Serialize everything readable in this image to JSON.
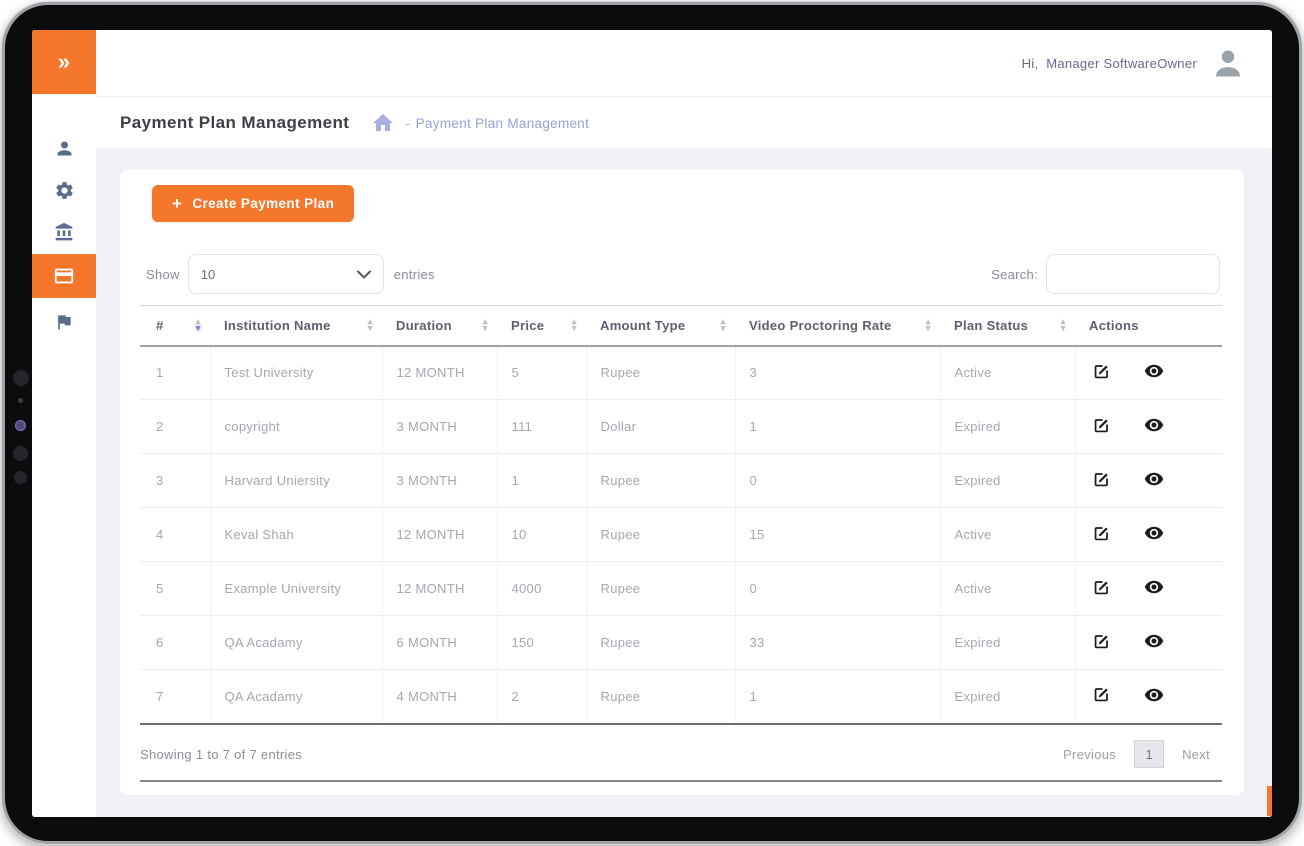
{
  "topbar": {
    "greeting_prefix": "Hi,",
    "username": "Manager SoftwareOwner"
  },
  "sidebar": {
    "toggle_glyph": "»",
    "items": [
      {
        "id": "users",
        "icon": "user-icon"
      },
      {
        "id": "settings",
        "icon": "gear-icon"
      },
      {
        "id": "institutions",
        "icon": "bank-icon"
      },
      {
        "id": "payment-plans",
        "icon": "credit-card-icon",
        "active": true
      },
      {
        "id": "reports",
        "icon": "flag-icon"
      }
    ]
  },
  "page": {
    "title": "Payment Plan Management",
    "breadcrumb": {
      "home_icon": "home-icon",
      "separator": "-",
      "current": "Payment Plan Management"
    }
  },
  "icons": {
    "plus": "+",
    "sort_asc": "▲",
    "sort_desc": "▼"
  },
  "main": {
    "create_button": {
      "label": "Create Payment Plan"
    },
    "length_control": {
      "prefix": "Show",
      "selected": "10",
      "suffix": "entries"
    },
    "search": {
      "label": "Search:",
      "value": ""
    },
    "table": {
      "columns": [
        {
          "label": "#",
          "sortable": true,
          "sort_active": true
        },
        {
          "label": "Institution Name",
          "sortable": true
        },
        {
          "label": "Duration",
          "sortable": true
        },
        {
          "label": "Price",
          "sortable": true
        },
        {
          "label": "Amount Type",
          "sortable": true
        },
        {
          "label": "Video Proctoring Rate",
          "sortable": true
        },
        {
          "label": "Plan Status",
          "sortable": true
        },
        {
          "label": "Actions",
          "sortable": false
        }
      ],
      "rows": [
        {
          "num": "1",
          "institution": "Test University",
          "duration": "12 MONTH",
          "price": "5",
          "amount_type": "Rupee",
          "video_proctoring_rate": "3",
          "plan_status": "Active"
        },
        {
          "num": "2",
          "institution": "copyright",
          "duration": "3 MONTH",
          "price": "111",
          "amount_type": "Dollar",
          "video_proctoring_rate": "1",
          "plan_status": "Expired"
        },
        {
          "num": "3",
          "institution": "Harvard Uniersity",
          "duration": "3 MONTH",
          "price": "1",
          "amount_type": "Rupee",
          "video_proctoring_rate": "0",
          "plan_status": "Expired"
        },
        {
          "num": "4",
          "institution": "Keval Shah",
          "duration": "12 MONTH",
          "price": "10",
          "amount_type": "Rupee",
          "video_proctoring_rate": "15",
          "plan_status": "Active"
        },
        {
          "num": "5",
          "institution": "Example University",
          "duration": "12 MONTH",
          "price": "4000",
          "amount_type": "Rupee",
          "video_proctoring_rate": "0",
          "plan_status": "Active"
        },
        {
          "num": "6",
          "institution": "QA Acadamy",
          "duration": "6 MONTH",
          "price": "150",
          "amount_type": "Rupee",
          "video_proctoring_rate": "33",
          "plan_status": "Expired"
        },
        {
          "num": "7",
          "institution": "QA Acadamy",
          "duration": "4 MONTH",
          "price": "2",
          "amount_type": "Rupee",
          "video_proctoring_rate": "1",
          "plan_status": "Expired"
        }
      ]
    },
    "footer": {
      "info": "Showing 1 to 7 of 7 entries",
      "previous": "Previous",
      "page": "1",
      "next": "Next"
    }
  },
  "colors": {
    "accent_orange": "#F4772C",
    "breadcrumb_purple": "#9aa0d6",
    "sidebar_icon": "#5b6b8f",
    "active_sort_arrow": "#7b82e4",
    "content_background": "#f0f0f6"
  }
}
